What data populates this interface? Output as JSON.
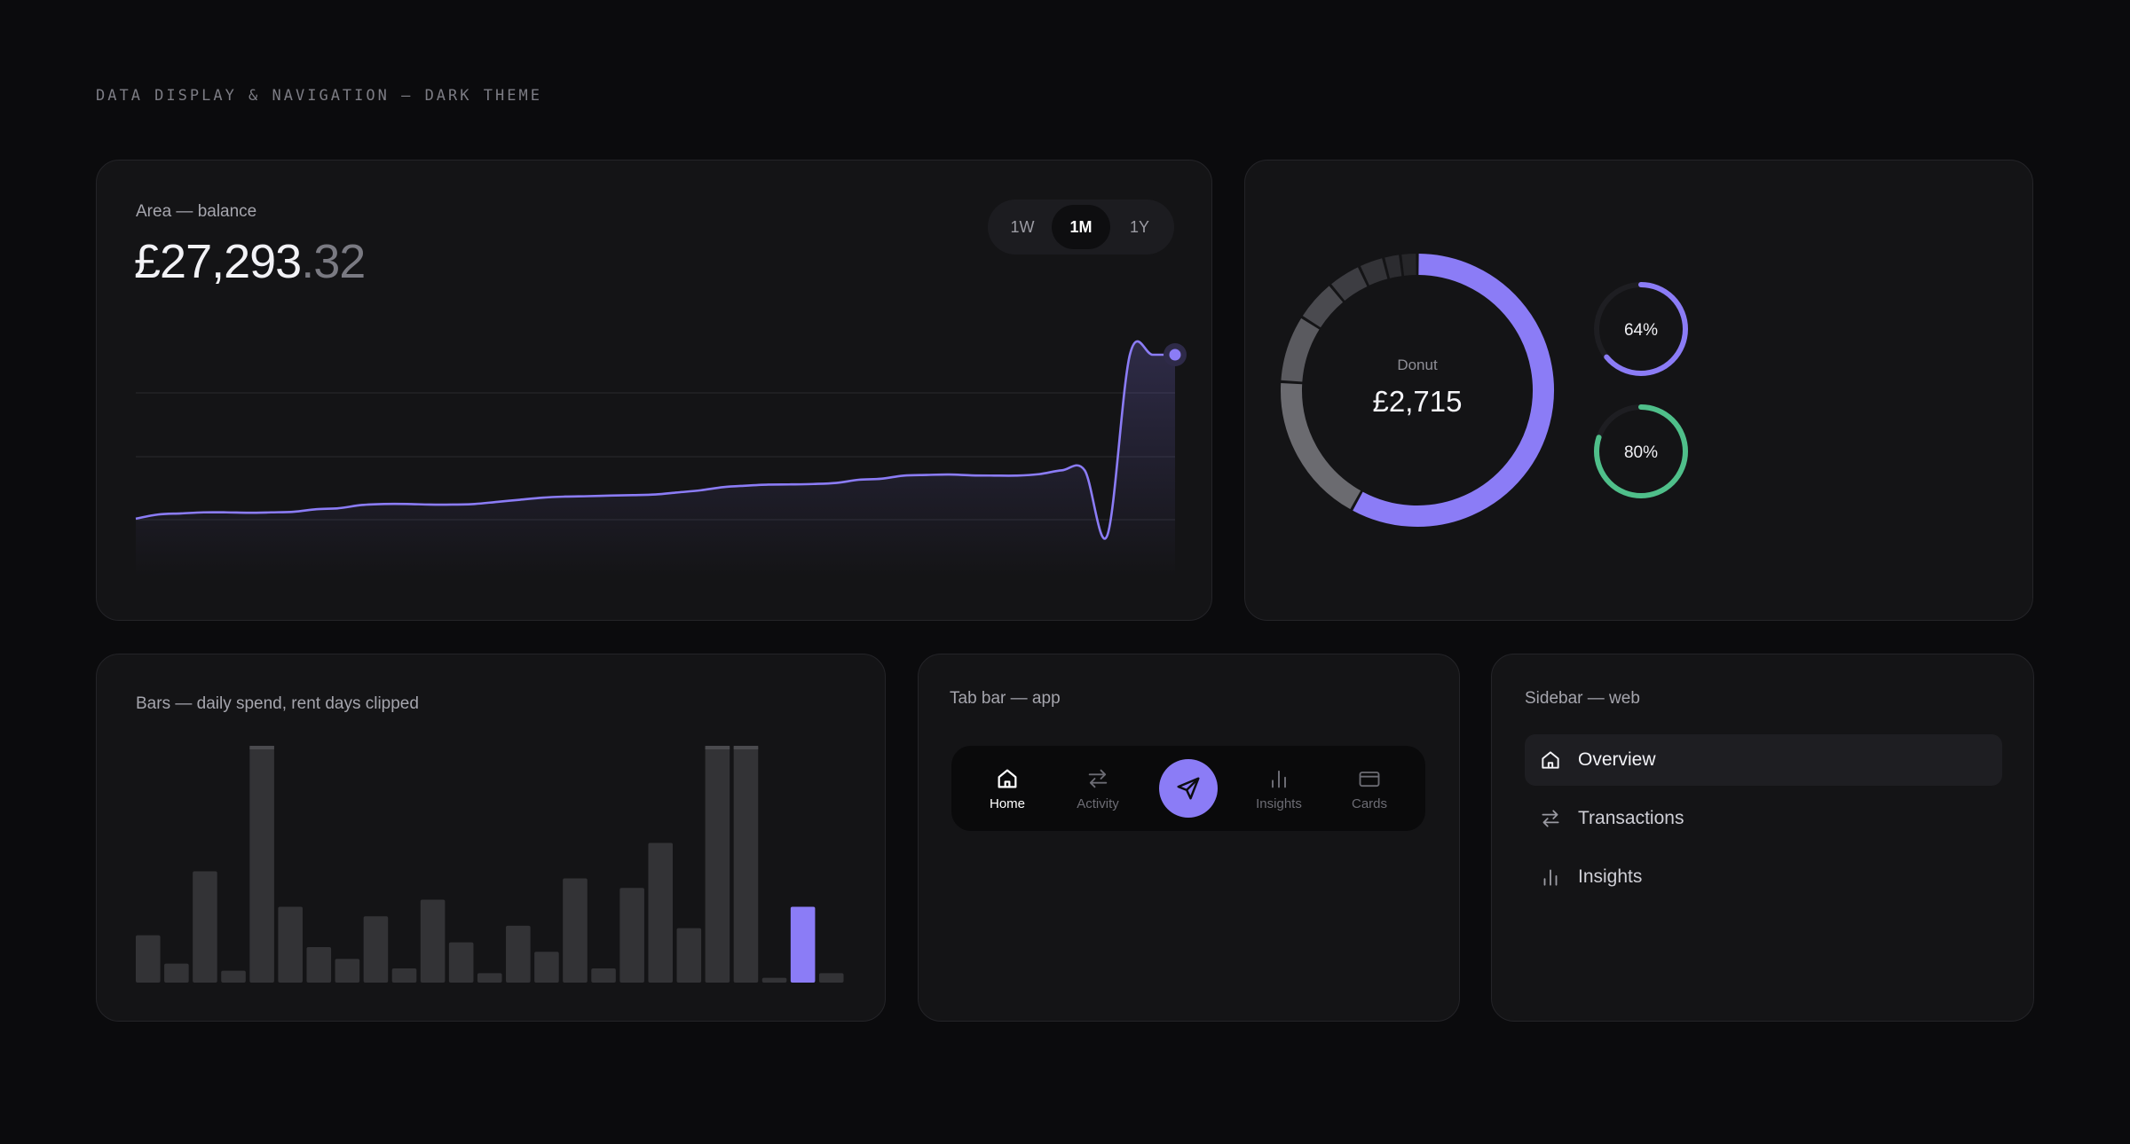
{
  "page_label": "DATA DISPLAY & NAVIGATION — DARK THEME",
  "area_card": {
    "label": "Area — balance",
    "balance_main": "£27,293",
    "balance_decimal": ".32",
    "ranges": [
      {
        "label": "1W",
        "active": false
      },
      {
        "label": "1M",
        "active": true
      },
      {
        "label": "1Y",
        "active": false
      }
    ],
    "accent": "#8b7cf6",
    "series_values": [
      22,
      24,
      24.5,
      25,
      25,
      24.8,
      25,
      25.3,
      26.5,
      27,
      28.5,
      29,
      29,
      28.7,
      28.7,
      29,
      30,
      31,
      32,
      32.5,
      32.7,
      33,
      33.2,
      33.5,
      34.5,
      35.5,
      37,
      37.7,
      38.2,
      38.3,
      38.5,
      39,
      40.5,
      41,
      42.5,
      42.8,
      43,
      42.6,
      42.5,
      42.5,
      43.2,
      45,
      45,
      14,
      100,
      100,
      100
    ]
  },
  "donut_card": {
    "center_label": "Donut",
    "center_value": "£2,715",
    "segments": [
      {
        "fraction": 0.58,
        "color": "#8b7cf6"
      },
      {
        "fraction": 0.18,
        "color": "#6b6b70"
      },
      {
        "fraction": 0.08,
        "color": "#5a5a5f"
      },
      {
        "fraction": 0.05,
        "color": "#4a4a4f"
      },
      {
        "fraction": 0.04,
        "color": "#3d3d42"
      },
      {
        "fraction": 0.03,
        "color": "#333337"
      },
      {
        "fraction": 0.02,
        "color": "#2c2c30"
      },
      {
        "fraction": 0.02,
        "color": "#262629"
      }
    ],
    "rings": [
      {
        "label": "64%",
        "value": 0.64,
        "color": "#8b7cf6"
      },
      {
        "label": "80%",
        "value": 0.8,
        "color": "#4fbf8a"
      }
    ]
  },
  "bars_card": {
    "label": "Bars — daily spend, rent days clipped",
    "values": [
      20,
      8,
      47,
      5,
      100,
      32,
      15,
      10,
      28,
      6,
      35,
      17,
      4,
      24,
      13,
      44,
      6,
      40,
      59,
      23,
      100,
      100,
      2,
      32,
      4
    ],
    "clipped": [
      false,
      false,
      false,
      false,
      true,
      false,
      false,
      false,
      false,
      false,
      false,
      false,
      false,
      false,
      false,
      false,
      false,
      false,
      false,
      false,
      true,
      true,
      false,
      false,
      false
    ],
    "highlight_index": 23,
    "bar_color": "#333336",
    "highlight_color": "#8b7cf6"
  },
  "tabs_card": {
    "label": "Tab bar — app",
    "tabs": [
      {
        "label": "Home",
        "icon": "home-icon"
      },
      {
        "label": "Activity",
        "icon": "arrows-icon"
      },
      {
        "label": "",
        "icon": "send-icon"
      },
      {
        "label": "Insights",
        "icon": "insights-icon"
      },
      {
        "label": "Cards",
        "icon": "card-icon"
      }
    ]
  },
  "sidebar_card": {
    "label": "Sidebar — web",
    "items": [
      {
        "label": "Overview",
        "icon": "home-icon",
        "active": true
      },
      {
        "label": "Transactions",
        "icon": "arrows-icon",
        "active": false
      },
      {
        "label": "Insights",
        "icon": "insights-icon",
        "active": false
      }
    ]
  }
}
